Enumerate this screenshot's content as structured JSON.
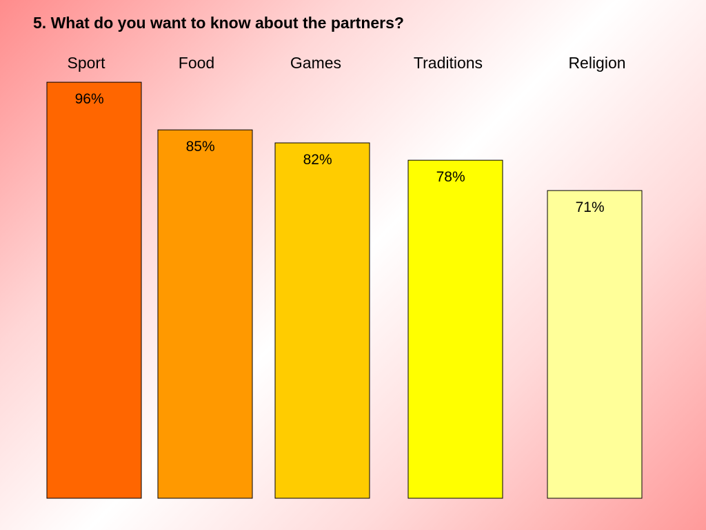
{
  "title": "5. What do you want to know about the partners?",
  "chart_data": {
    "type": "bar",
    "title": "5. What do you want to know about the partners?",
    "categories": [
      "Sport",
      "Food",
      "Games",
      "Traditions",
      "Religion"
    ],
    "values": [
      96,
      85,
      82,
      78,
      71
    ],
    "value_labels": [
      "96%",
      "85%",
      "82%",
      "78%",
      "71%"
    ],
    "colors": [
      "#ff6600",
      "#ff9900",
      "#ffcc00",
      "#ffff00",
      "#ffff99"
    ],
    "xlabel": "",
    "ylabel": "",
    "grid": false,
    "legend": "none"
  }
}
